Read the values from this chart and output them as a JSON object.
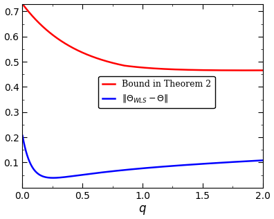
{
  "xlabel": "q",
  "xlim": [
    0,
    2
  ],
  "ylim": [
    0,
    0.73
  ],
  "yticks": [
    0.1,
    0.2,
    0.3,
    0.4,
    0.5,
    0.6,
    0.7
  ],
  "xticks": [
    0,
    0.5,
    1.0,
    1.5,
    2.0
  ],
  "red_color": "#ff0000",
  "blue_color": "#0000ff",
  "legend_labels": [
    "Bound in Theorem 2",
    "$\\|\\Theta_{WLS} - \\Theta\\|$"
  ],
  "background_color": "#ffffff",
  "linewidth": 1.8
}
